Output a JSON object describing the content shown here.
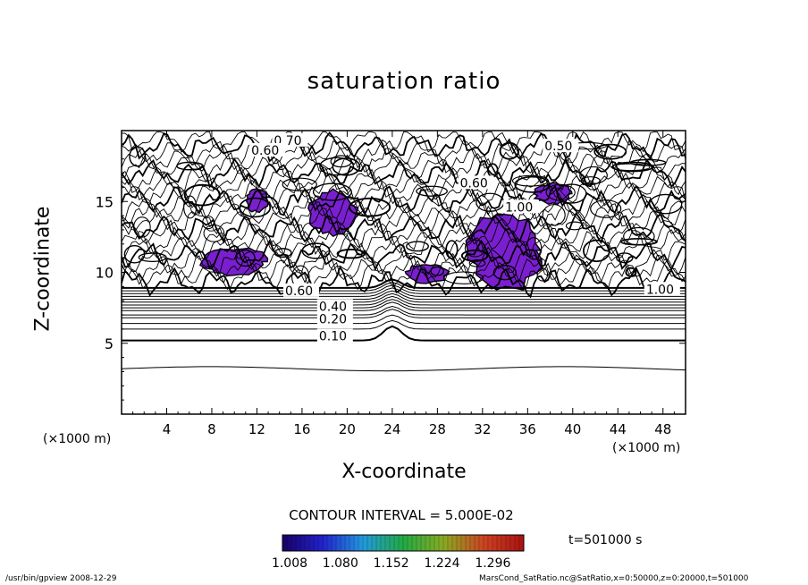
{
  "chart_data": {
    "type": "contour",
    "title": "saturation ratio",
    "xlabel": "X-coordinate",
    "ylabel": "Z-coordinate",
    "x_unit_label": "(×1000 m)",
    "xlim": [
      0,
      50
    ],
    "ylim": [
      0,
      20
    ],
    "x_ticks": [
      4,
      8,
      12,
      16,
      20,
      24,
      28,
      32,
      36,
      40,
      44,
      48
    ],
    "y_ticks": [
      5,
      10,
      15
    ],
    "contour_labels": [
      {
        "text": "0.10",
        "x": 17.5,
        "z": 5.2
      },
      {
        "text": "0.20",
        "x": 17.5,
        "z": 6.4
      },
      {
        "text": "0.40",
        "x": 17.5,
        "z": 7.3
      },
      {
        "text": "0.60",
        "x": 14.5,
        "z": 8.4
      },
      {
        "text": "0.70",
        "x": 13.5,
        "z": 19.0
      },
      {
        "text": "0.60",
        "x": 11.5,
        "z": 18.3
      },
      {
        "text": "0.50",
        "x": 37.5,
        "z": 18.6
      },
      {
        "text": "0.60",
        "x": 30.0,
        "z": 16.0
      },
      {
        "text": "1.00",
        "x": 34.0,
        "z": 14.3
      },
      {
        "text": "1.00",
        "x": 46.5,
        "z": 8.5
      }
    ],
    "supersaturated_regions": [
      {
        "x": [
          11,
          13
        ],
        "z": [
          14.2,
          15.9
        ]
      },
      {
        "x": [
          16.5,
          21
        ],
        "z": [
          12.5,
          15.8
        ]
      },
      {
        "x": [
          30.5,
          37.5
        ],
        "z": [
          8.6,
          14.5
        ]
      },
      {
        "x": [
          36.5,
          40
        ],
        "z": [
          14.8,
          16.3
        ]
      },
      {
        "x": [
          7,
          13
        ],
        "z": [
          9.7,
          11.8
        ]
      },
      {
        "x": [
          25,
          29
        ],
        "z": [
          9.2,
          10.6
        ]
      }
    ],
    "contour_interval_label": "CONTOUR INTERVAL = 5.000E-02",
    "colorbar": {
      "tick_labels": [
        "1.008",
        "1.080",
        "1.152",
        "1.224",
        "1.296"
      ],
      "colors": [
        "#1a0066",
        "#2222cc",
        "#2299dd",
        "#22aa44",
        "#88aa22",
        "#cc4422",
        "#aa1111"
      ]
    },
    "time_label": "t=501000 s"
  },
  "footer": {
    "left": "/usr/bin/gpview   2008-12-29",
    "right": "MarsCond_SatRatio.nc@SatRatio,x=0:50000,z=0:20000,t=501000"
  }
}
